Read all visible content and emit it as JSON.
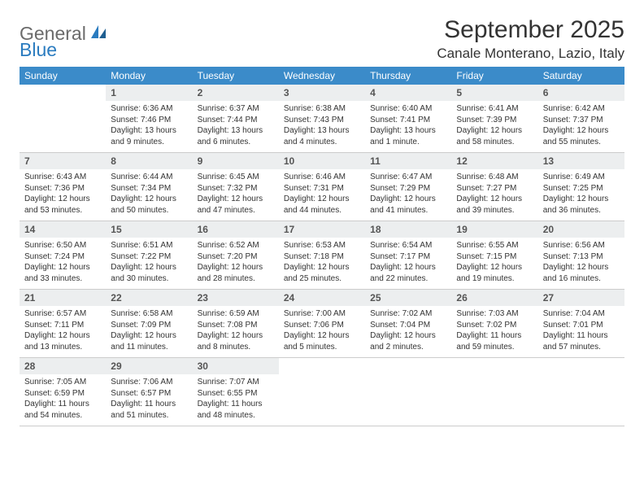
{
  "logo": {
    "part1": "General",
    "part2": "Blue"
  },
  "title": "September 2025",
  "location": "Canale Monterano, Lazio, Italy",
  "colors": {
    "header_bg": "#3b8bc9",
    "daynum_bg": "#eceeef",
    "text": "#333333",
    "logo_gray": "#6b6b6b",
    "logo_blue": "#2a7bbf"
  },
  "weekdays": [
    "Sunday",
    "Monday",
    "Tuesday",
    "Wednesday",
    "Thursday",
    "Friday",
    "Saturday"
  ],
  "weeks": [
    [
      null,
      {
        "n": "1",
        "sr": "Sunrise: 6:36 AM",
        "ss": "Sunset: 7:46 PM",
        "d1": "Daylight: 13 hours",
        "d2": "and 9 minutes."
      },
      {
        "n": "2",
        "sr": "Sunrise: 6:37 AM",
        "ss": "Sunset: 7:44 PM",
        "d1": "Daylight: 13 hours",
        "d2": "and 6 minutes."
      },
      {
        "n": "3",
        "sr": "Sunrise: 6:38 AM",
        "ss": "Sunset: 7:43 PM",
        "d1": "Daylight: 13 hours",
        "d2": "and 4 minutes."
      },
      {
        "n": "4",
        "sr": "Sunrise: 6:40 AM",
        "ss": "Sunset: 7:41 PM",
        "d1": "Daylight: 13 hours",
        "d2": "and 1 minute."
      },
      {
        "n": "5",
        "sr": "Sunrise: 6:41 AM",
        "ss": "Sunset: 7:39 PM",
        "d1": "Daylight: 12 hours",
        "d2": "and 58 minutes."
      },
      {
        "n": "6",
        "sr": "Sunrise: 6:42 AM",
        "ss": "Sunset: 7:37 PM",
        "d1": "Daylight: 12 hours",
        "d2": "and 55 minutes."
      }
    ],
    [
      {
        "n": "7",
        "sr": "Sunrise: 6:43 AM",
        "ss": "Sunset: 7:36 PM",
        "d1": "Daylight: 12 hours",
        "d2": "and 53 minutes."
      },
      {
        "n": "8",
        "sr": "Sunrise: 6:44 AM",
        "ss": "Sunset: 7:34 PM",
        "d1": "Daylight: 12 hours",
        "d2": "and 50 minutes."
      },
      {
        "n": "9",
        "sr": "Sunrise: 6:45 AM",
        "ss": "Sunset: 7:32 PM",
        "d1": "Daylight: 12 hours",
        "d2": "and 47 minutes."
      },
      {
        "n": "10",
        "sr": "Sunrise: 6:46 AM",
        "ss": "Sunset: 7:31 PM",
        "d1": "Daylight: 12 hours",
        "d2": "and 44 minutes."
      },
      {
        "n": "11",
        "sr": "Sunrise: 6:47 AM",
        "ss": "Sunset: 7:29 PM",
        "d1": "Daylight: 12 hours",
        "d2": "and 41 minutes."
      },
      {
        "n": "12",
        "sr": "Sunrise: 6:48 AM",
        "ss": "Sunset: 7:27 PM",
        "d1": "Daylight: 12 hours",
        "d2": "and 39 minutes."
      },
      {
        "n": "13",
        "sr": "Sunrise: 6:49 AM",
        "ss": "Sunset: 7:25 PM",
        "d1": "Daylight: 12 hours",
        "d2": "and 36 minutes."
      }
    ],
    [
      {
        "n": "14",
        "sr": "Sunrise: 6:50 AM",
        "ss": "Sunset: 7:24 PM",
        "d1": "Daylight: 12 hours",
        "d2": "and 33 minutes."
      },
      {
        "n": "15",
        "sr": "Sunrise: 6:51 AM",
        "ss": "Sunset: 7:22 PM",
        "d1": "Daylight: 12 hours",
        "d2": "and 30 minutes."
      },
      {
        "n": "16",
        "sr": "Sunrise: 6:52 AM",
        "ss": "Sunset: 7:20 PM",
        "d1": "Daylight: 12 hours",
        "d2": "and 28 minutes."
      },
      {
        "n": "17",
        "sr": "Sunrise: 6:53 AM",
        "ss": "Sunset: 7:18 PM",
        "d1": "Daylight: 12 hours",
        "d2": "and 25 minutes."
      },
      {
        "n": "18",
        "sr": "Sunrise: 6:54 AM",
        "ss": "Sunset: 7:17 PM",
        "d1": "Daylight: 12 hours",
        "d2": "and 22 minutes."
      },
      {
        "n": "19",
        "sr": "Sunrise: 6:55 AM",
        "ss": "Sunset: 7:15 PM",
        "d1": "Daylight: 12 hours",
        "d2": "and 19 minutes."
      },
      {
        "n": "20",
        "sr": "Sunrise: 6:56 AM",
        "ss": "Sunset: 7:13 PM",
        "d1": "Daylight: 12 hours",
        "d2": "and 16 minutes."
      }
    ],
    [
      {
        "n": "21",
        "sr": "Sunrise: 6:57 AM",
        "ss": "Sunset: 7:11 PM",
        "d1": "Daylight: 12 hours",
        "d2": "and 13 minutes."
      },
      {
        "n": "22",
        "sr": "Sunrise: 6:58 AM",
        "ss": "Sunset: 7:09 PM",
        "d1": "Daylight: 12 hours",
        "d2": "and 11 minutes."
      },
      {
        "n": "23",
        "sr": "Sunrise: 6:59 AM",
        "ss": "Sunset: 7:08 PM",
        "d1": "Daylight: 12 hours",
        "d2": "and 8 minutes."
      },
      {
        "n": "24",
        "sr": "Sunrise: 7:00 AM",
        "ss": "Sunset: 7:06 PM",
        "d1": "Daylight: 12 hours",
        "d2": "and 5 minutes."
      },
      {
        "n": "25",
        "sr": "Sunrise: 7:02 AM",
        "ss": "Sunset: 7:04 PM",
        "d1": "Daylight: 12 hours",
        "d2": "and 2 minutes."
      },
      {
        "n": "26",
        "sr": "Sunrise: 7:03 AM",
        "ss": "Sunset: 7:02 PM",
        "d1": "Daylight: 11 hours",
        "d2": "and 59 minutes."
      },
      {
        "n": "27",
        "sr": "Sunrise: 7:04 AM",
        "ss": "Sunset: 7:01 PM",
        "d1": "Daylight: 11 hours",
        "d2": "and 57 minutes."
      }
    ],
    [
      {
        "n": "28",
        "sr": "Sunrise: 7:05 AM",
        "ss": "Sunset: 6:59 PM",
        "d1": "Daylight: 11 hours",
        "d2": "and 54 minutes."
      },
      {
        "n": "29",
        "sr": "Sunrise: 7:06 AM",
        "ss": "Sunset: 6:57 PM",
        "d1": "Daylight: 11 hours",
        "d2": "and 51 minutes."
      },
      {
        "n": "30",
        "sr": "Sunrise: 7:07 AM",
        "ss": "Sunset: 6:55 PM",
        "d1": "Daylight: 11 hours",
        "d2": "and 48 minutes."
      },
      null,
      null,
      null,
      null
    ]
  ]
}
